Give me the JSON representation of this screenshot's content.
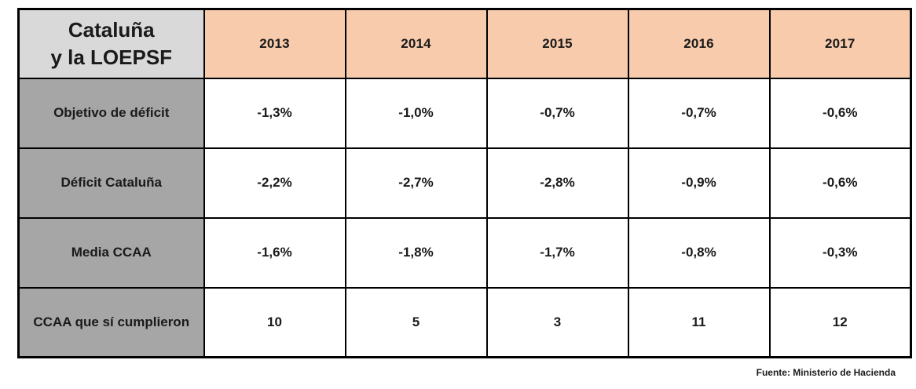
{
  "table": {
    "title_line1": "Cataluña",
    "title_line2": "y la LOEPSF",
    "years": [
      "2013",
      "2014",
      "2015",
      "2016",
      "2017"
    ],
    "rows": [
      {
        "label": "Objetivo de déficit",
        "values": [
          "-1,3%",
          "-1,0%",
          "-0,7%",
          "-0,7%",
          "-0,6%"
        ]
      },
      {
        "label": "Déficit Cataluña",
        "values": [
          "-2,2%",
          "-2,7%",
          "-2,8%",
          "-0,9%",
          "-0,6%"
        ]
      },
      {
        "label": "Media CCAA",
        "values": [
          "-1,6%",
          "-1,8%",
          "-1,7%",
          "-0,8%",
          "-0,3%"
        ]
      },
      {
        "label": "CCAA que sí cumplieron",
        "values": [
          "10",
          "5",
          "3",
          "11",
          "12"
        ]
      }
    ]
  },
  "footer": {
    "source": "Fuente: Ministerio de Hacienda"
  },
  "colors": {
    "corner_bg": "#d9d9d9",
    "year_header_bg": "#f8cbad",
    "row_header_bg": "#a6a6a6",
    "value_bg": "#ffffff",
    "border": "#000000",
    "text": "#1a1a1a"
  },
  "chart_data": {
    "type": "table",
    "title": "Cataluña y la LOEPSF",
    "categories": [
      "2013",
      "2014",
      "2015",
      "2016",
      "2017"
    ],
    "series": [
      {
        "name": "Objetivo de déficit",
        "values": [
          -1.3,
          -1.0,
          -0.7,
          -0.7,
          -0.6
        ],
        "unit": "%"
      },
      {
        "name": "Déficit Cataluña",
        "values": [
          -2.2,
          -2.7,
          -2.8,
          -0.9,
          -0.6
        ],
        "unit": "%"
      },
      {
        "name": "Media CCAA",
        "values": [
          -1.6,
          -1.8,
          -1.7,
          -0.8,
          -0.3
        ],
        "unit": "%"
      },
      {
        "name": "CCAA que sí cumplieron",
        "values": [
          10,
          5,
          3,
          11,
          12
        ],
        "unit": "count"
      }
    ],
    "source": "Fuente: Ministerio de Hacienda"
  }
}
